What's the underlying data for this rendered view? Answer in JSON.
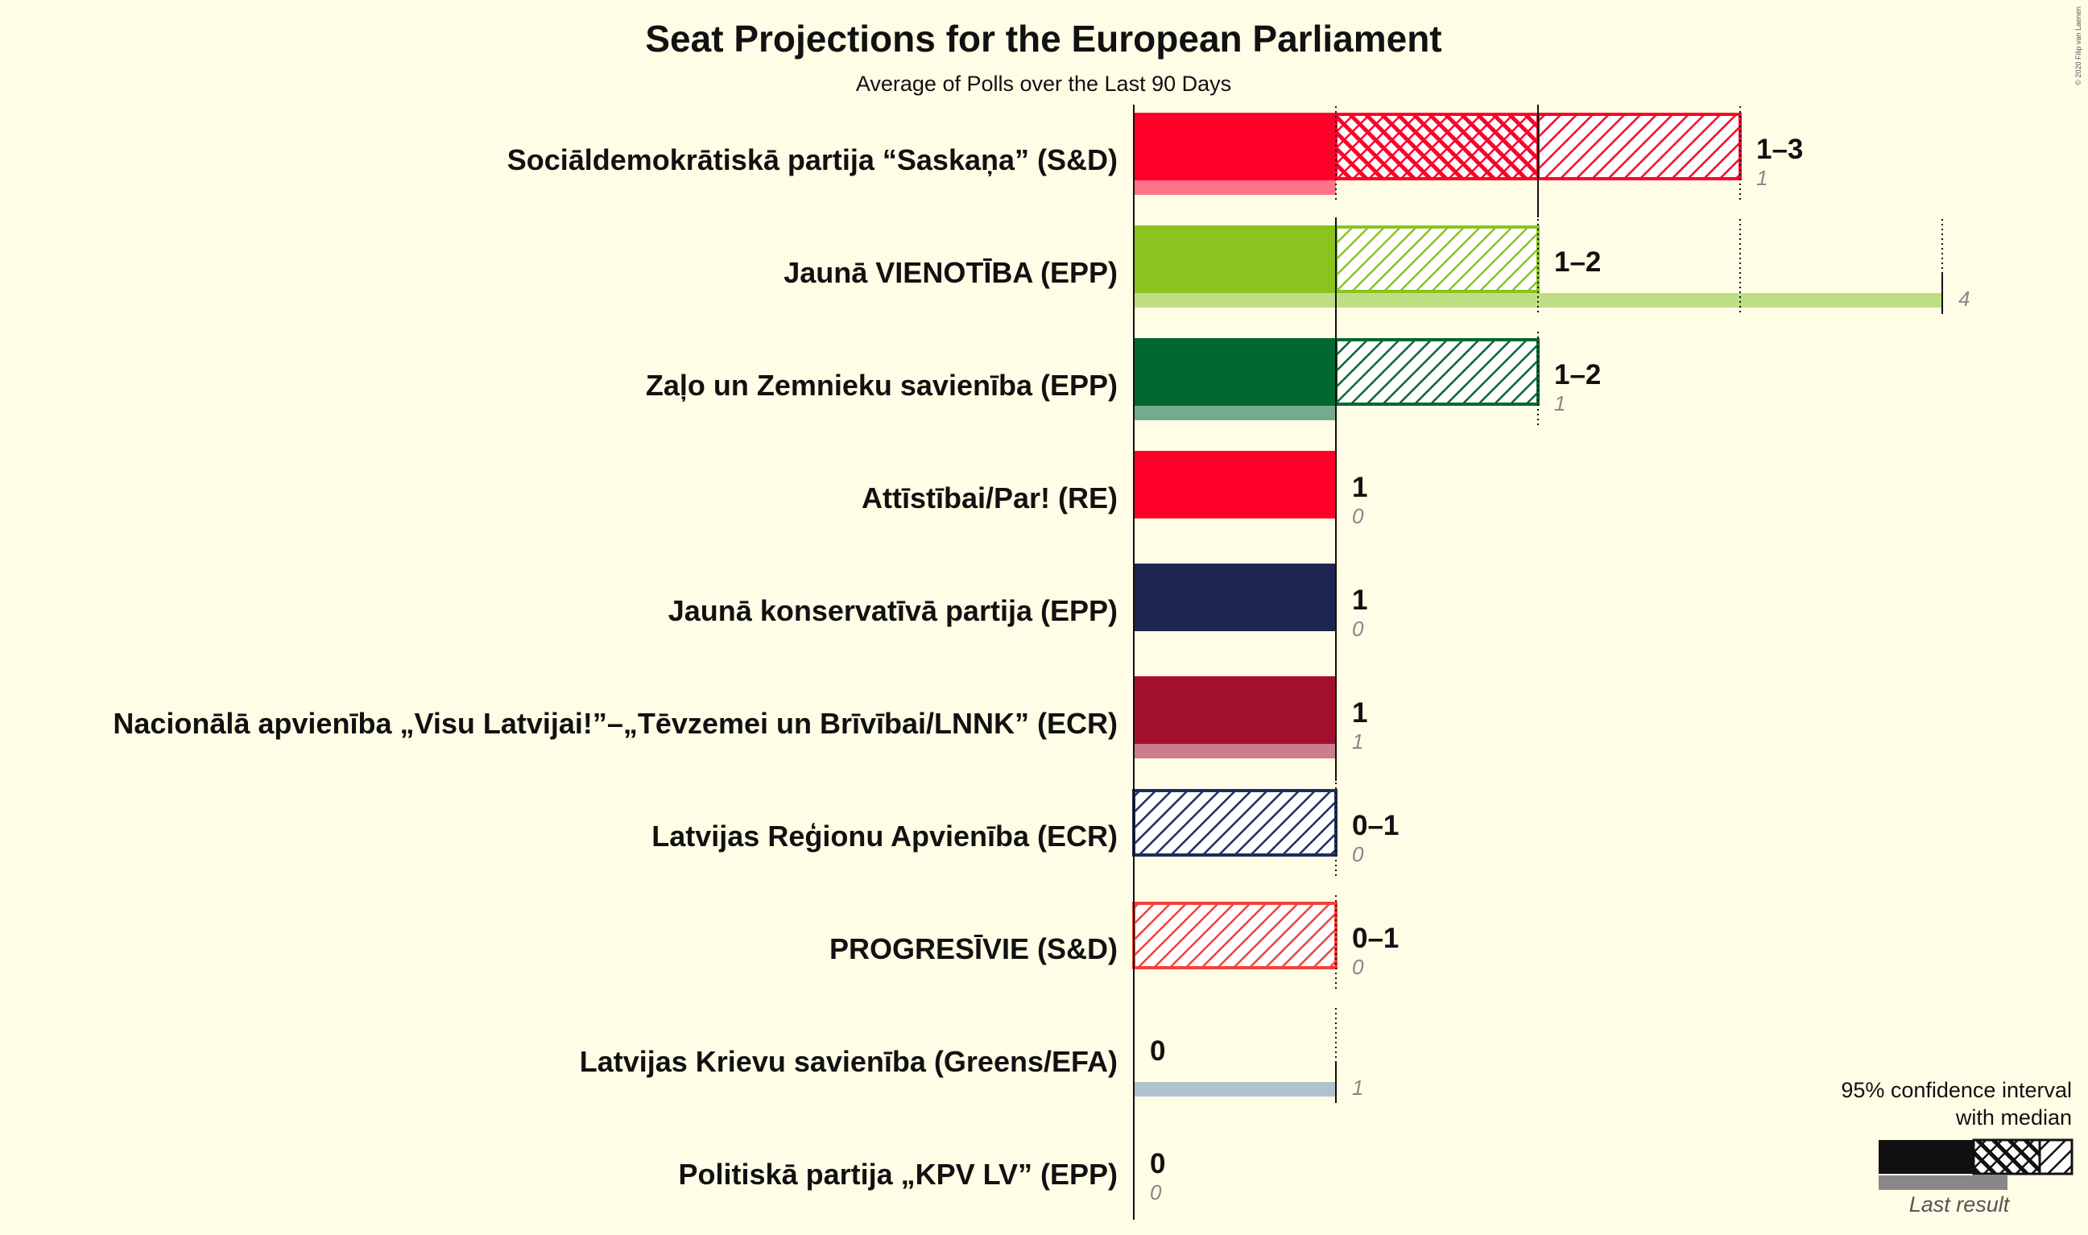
{
  "chart_data": {
    "type": "bar",
    "title": "Seat Projections for the European Parliament",
    "subtitle": "Average of Polls over the Last 90 Days",
    "xlim": [
      0,
      4
    ],
    "parties": [
      {
        "name": "Sociāldemokrātiskā partija “Saskaņa” (S&D)",
        "color": "#FF0029",
        "min": 1,
        "median": 2,
        "max": 3,
        "range_label": "1–3",
        "last": 1,
        "last_label": "1"
      },
      {
        "name": "Jaunā VIENOTĪBA (EPP)",
        "color": "#8BC31F",
        "min": 1,
        "median": 1,
        "max": 2,
        "range_label": "1–2",
        "last": 4,
        "last_label": "4"
      },
      {
        "name": "Zaļo un Zemnieku savienība (EPP)",
        "color": "#006830",
        "min": 1,
        "median": 1,
        "max": 2,
        "range_label": "1–2",
        "last": 1,
        "last_label": "1"
      },
      {
        "name": "Attīstībai/Par! (RE)",
        "color": "#FF0029",
        "min": 1,
        "median": 1,
        "max": 1,
        "range_label": "1",
        "last": 0,
        "last_label": "0"
      },
      {
        "name": "Jaunā konservatīvā partija (EPP)",
        "color": "#1E2550",
        "min": 1,
        "median": 1,
        "max": 1,
        "range_label": "1",
        "last": 0,
        "last_label": "0"
      },
      {
        "name": "Nacionālā apvienība „Visu Latvijai!”–„Tēvzemei un Brīvībai/LNNK” (ECR)",
        "color": "#A3102F",
        "min": 1,
        "median": 1,
        "max": 1,
        "range_label": "1",
        "last": 1,
        "last_label": "1"
      },
      {
        "name": "Latvijas Reģionu Apvienība (ECR)",
        "color": "#1E2E5A",
        "min": 0,
        "median": 0,
        "max": 1,
        "range_label": "0–1",
        "last": 0,
        "last_label": "0"
      },
      {
        "name": "PROGRESĪVIE (S&D)",
        "color": "#F2413A",
        "min": 0,
        "median": 0,
        "max": 1,
        "range_label": "0–1",
        "last": 0,
        "last_label": "0"
      },
      {
        "name": "Latvijas Krievu savienība (Greens/EFA)",
        "color": "#6F90A8",
        "min": 0,
        "median": 0,
        "max": 0,
        "range_label": "0",
        "last": 1,
        "last_label": "1"
      },
      {
        "name": "Politiskā partija „KPV LV” (EPP)",
        "color": "#444444",
        "min": 0,
        "median": 0,
        "max": 0,
        "range_label": "0",
        "last": 0,
        "last_label": "0"
      }
    ],
    "legend": {
      "line1": "95% confidence interval",
      "line2": "with median",
      "last_result": "Last result",
      "placement": "bottom-right"
    },
    "copyright": "© 2020 Filip van Laenen"
  }
}
